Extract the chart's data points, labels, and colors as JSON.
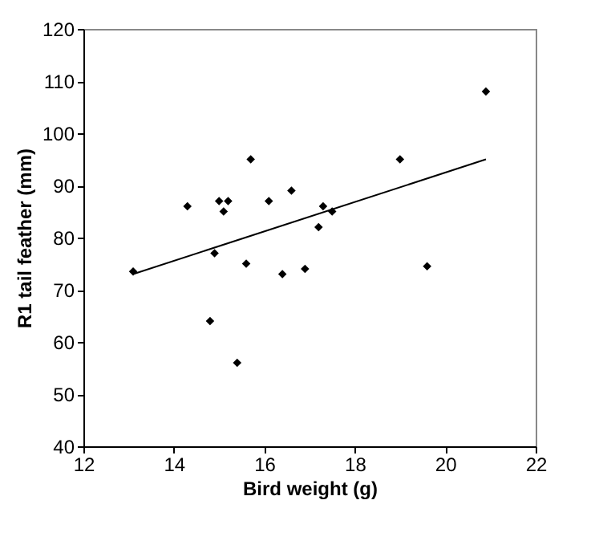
{
  "chart_data": {
    "type": "scatter",
    "xlabel": "Bird weight (g)",
    "ylabel": "R1 tail feather (mm)",
    "xlim": [
      12,
      22
    ],
    "xticks": [
      12,
      14,
      16,
      18,
      20,
      22
    ],
    "ylim": [
      40,
      120
    ],
    "yticks": [
      40,
      50,
      60,
      70,
      80,
      90,
      100,
      110,
      120
    ],
    "grid": false,
    "series": [
      {
        "color": "#000000",
        "marker": "diamond",
        "x": [
          13.1,
          14.3,
          14.8,
          14.9,
          15.0,
          15.1,
          15.2,
          15.4,
          15.6,
          15.7,
          16.1,
          16.4,
          16.6,
          16.9,
          17.2,
          17.3,
          17.5,
          19.0,
          19.6,
          20.9
        ],
        "values": [
          73.5,
          86,
          64,
          77,
          87,
          85,
          87,
          56,
          75,
          95,
          87,
          73,
          89,
          74,
          82,
          86,
          85,
          95,
          74.5,
          108
        ]
      },
      {
        "type": "line",
        "color": "#000000",
        "x": [
          13.1,
          20.9
        ],
        "values": [
          73,
          95
        ]
      }
    ]
  }
}
